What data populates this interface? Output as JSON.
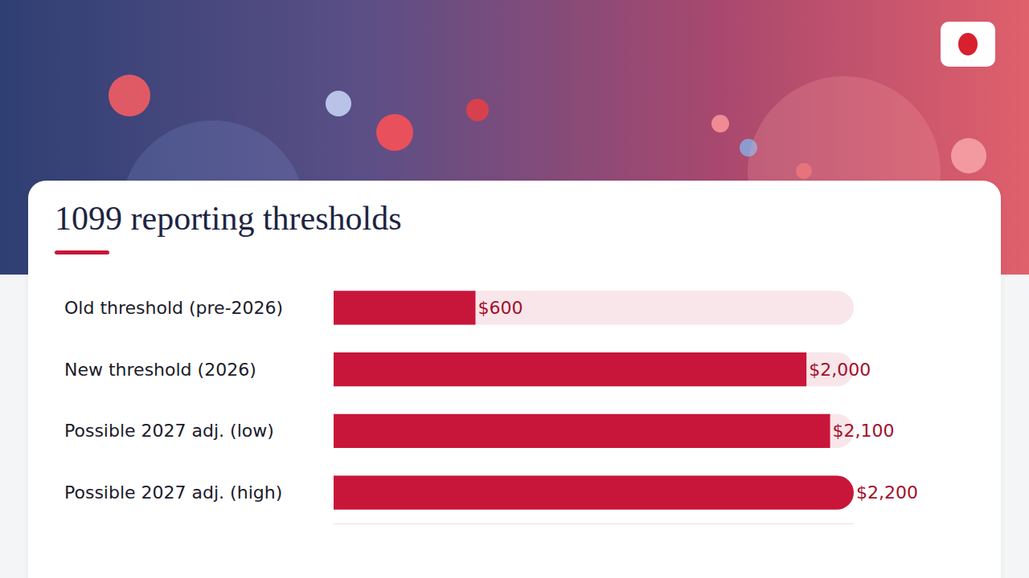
{
  "chart_data": {
    "type": "bar",
    "title": "1099 reporting thresholds",
    "orientation": "horizontal",
    "categories": [
      "Old threshold (pre-2026)",
      "New threshold (2026)",
      "Possible 2027 adj. (low)",
      "Possible 2027 adj. (high)"
    ],
    "values": [
      600,
      2000,
      2100,
      2200
    ],
    "value_labels": [
      "$600",
      "$2,000",
      "$2,100",
      "$2,200"
    ],
    "color": "#c8163a",
    "xlim": [
      0,
      2200
    ],
    "xticks": [],
    "data_labels": true,
    "tick_labels": "y",
    "grid": false
  }
}
